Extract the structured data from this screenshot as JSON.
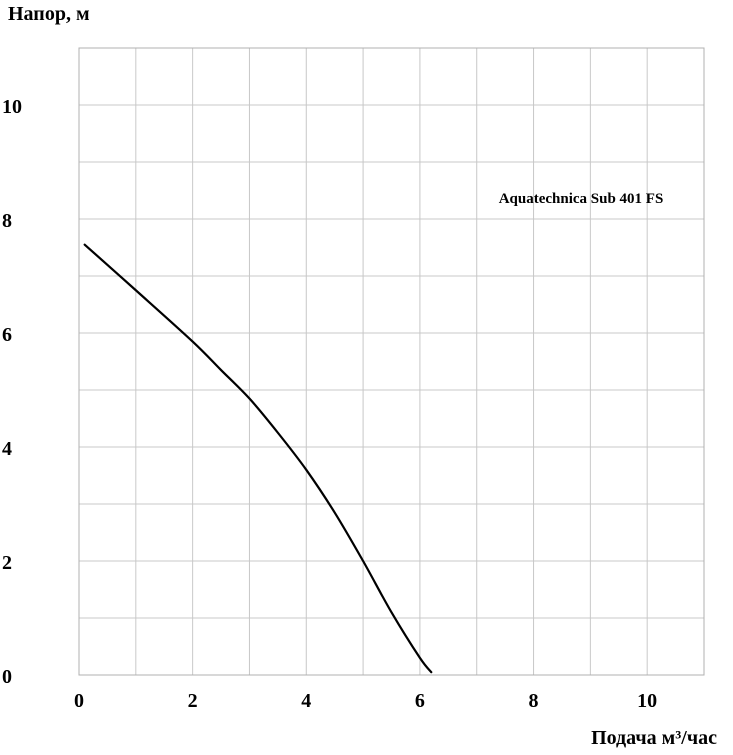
{
  "chart_data": {
    "type": "line",
    "ylabel": "Напор, м",
    "xlabel": "Подача  м³/час",
    "xlim": [
      0,
      11
    ],
    "ylim": [
      0,
      11
    ],
    "x_ticks": [
      0,
      2,
      4,
      6,
      8,
      10
    ],
    "y_ticks": [
      0,
      2,
      4,
      6,
      8,
      10
    ],
    "x_tick_labels": [
      "0",
      "2",
      "4",
      "6",
      "8",
      "10"
    ],
    "y_tick_labels": [
      "0",
      "2",
      "4",
      "6",
      "8",
      "10"
    ],
    "grid": true,
    "annotation": "Aquatechnica Sub 401 FS",
    "series": [
      {
        "color": "#000000",
        "x": [
          0.1,
          1.0,
          2.0,
          2.5,
          3.0,
          3.5,
          4.0,
          4.5,
          5.0,
          5.5,
          6.0,
          6.2
        ],
        "y": [
          7.55,
          6.75,
          5.85,
          5.35,
          4.85,
          4.25,
          3.6,
          2.85,
          2.0,
          1.1,
          0.3,
          0.05
        ]
      }
    ]
  }
}
